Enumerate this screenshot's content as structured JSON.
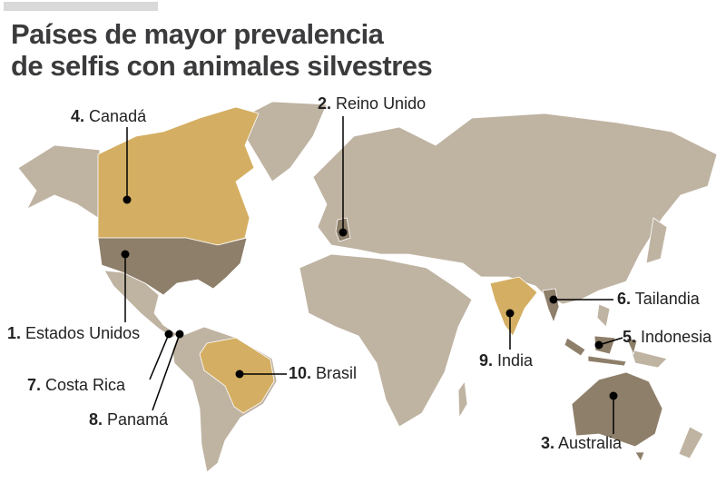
{
  "title_line1": "Países de mayor prevalencia",
  "title_line2": "de selfis con animales silvestres",
  "colors": {
    "land": "#bfb3a2",
    "top_1_3": "#8e7f6a",
    "rest_top": "#d4ae62",
    "title": "#3b3b3d"
  },
  "countries": [
    {
      "rank": "1.",
      "name": "Estados Unidos"
    },
    {
      "rank": "2.",
      "name": "Reino Unido"
    },
    {
      "rank": "3.",
      "name": "Australia"
    },
    {
      "rank": "4.",
      "name": "Canadá"
    },
    {
      "rank": "5.",
      "name": "Indonesia"
    },
    {
      "rank": "6.",
      "name": "Tailandia"
    },
    {
      "rank": "7.",
      "name": "Costa Rica"
    },
    {
      "rank": "8.",
      "name": "Panamá"
    },
    {
      "rank": "9.",
      "name": "India"
    },
    {
      "rank": "10.",
      "name": "Brasil"
    }
  ]
}
